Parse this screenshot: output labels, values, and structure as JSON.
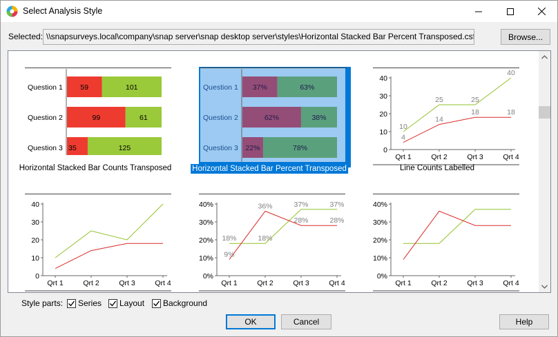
{
  "window": {
    "title": "Select Analysis Style",
    "minimize_icon": "minimize-icon",
    "maximize_icon": "maximize-icon",
    "close_icon": "close-icon"
  },
  "selected": {
    "label": "Selected:",
    "path": "\\\\snapsurveys.local\\company\\snap server\\snap desktop server\\styles\\Horizontal Stacked Bar Percent Transposed.csf"
  },
  "buttons": {
    "browse": "Browse...",
    "ok": "OK",
    "cancel": "Cancel",
    "help": "Help"
  },
  "style_parts": {
    "label": "Style parts:",
    "options": [
      {
        "label": "Series",
        "checked": true
      },
      {
        "label": "Layout",
        "checked": true
      },
      {
        "label": "Background",
        "checked": true
      }
    ]
  },
  "colors": {
    "accent": "#0078d7",
    "bar_red": "#ee3b2f",
    "bar_green": "#9ac93a",
    "line_red": "#d92b2b",
    "line_green": "#92c12a"
  },
  "thumbnails": [
    {
      "caption": "Horizontal Stacked Bar Counts Transposed",
      "selected": false,
      "chart_data": {
        "type": "bar",
        "orientation": "horizontal-stacked",
        "categories": [
          "Question 1",
          "Question 2",
          "Question 3"
        ],
        "series": [
          {
            "values": [
              59,
              99,
              35
            ]
          },
          {
            "values": [
              101,
              61,
              125
            ]
          }
        ],
        "labels": [
          [
            "59",
            "101"
          ],
          [
            "99",
            "61"
          ],
          [
            "35",
            "125"
          ]
        ]
      }
    },
    {
      "caption": "Horizontal Stacked Bar Percent Transposed",
      "selected": true,
      "chart_data": {
        "type": "bar",
        "orientation": "horizontal-stacked-percent",
        "categories": [
          "Question 1",
          "Question 2",
          "Question 3"
        ],
        "series": [
          {
            "values": [
              37,
              62,
              22
            ]
          },
          {
            "values": [
              63,
              38,
              78
            ]
          }
        ],
        "labels": [
          [
            "37%",
            "63%"
          ],
          [
            "62%",
            "38%"
          ],
          [
            "22%",
            "78%"
          ]
        ]
      }
    },
    {
      "caption": "Line Counts Labelled",
      "selected": false,
      "chart_data": {
        "type": "line",
        "categories": [
          "Qrt 1",
          "Qrt 2",
          "Qrt 3",
          "Qrt 4"
        ],
        "yticks": [
          "0",
          "10",
          "20",
          "30",
          "40"
        ],
        "ylim": [
          0,
          40
        ],
        "series": [
          {
            "values": [
              10,
              25,
              25,
              40
            ],
            "labels": [
              "10",
              "25",
              "25",
              "40"
            ]
          },
          {
            "values": [
              4,
              14,
              18,
              18
            ],
            "labels": [
              "4",
              "14",
              "18",
              "18"
            ]
          }
        ]
      }
    },
    {
      "caption": "",
      "selected": false,
      "chart_data": {
        "type": "line",
        "categories": [
          "Qrt 1",
          "Qrt 2",
          "Qrt 3",
          "Qrt 4"
        ],
        "yticks": [
          "0",
          "10",
          "20",
          "30",
          "40"
        ],
        "ylim": [
          0,
          40
        ],
        "series": [
          {
            "values": [
              10,
              25,
              20,
              40
            ]
          },
          {
            "values": [
              4,
              14,
              18,
              18
            ]
          }
        ]
      }
    },
    {
      "caption": "",
      "selected": false,
      "chart_data": {
        "type": "line",
        "categories": [
          "Qrt 1",
          "Qrt 2",
          "Qrt 3",
          "Qrt 4"
        ],
        "yticks": [
          "0%",
          "10%",
          "20%",
          "30%",
          "40%"
        ],
        "ylim": [
          0,
          40
        ],
        "series": [
          {
            "values": [
              18,
              18,
              37,
              37
            ],
            "labels": [
              "18%",
              "18%",
              "37%",
              "37%"
            ]
          },
          {
            "values": [
              9,
              36,
              28,
              28
            ],
            "labels": [
              "9%",
              "36%",
              "28%",
              "28%"
            ]
          }
        ]
      }
    },
    {
      "caption": "",
      "selected": false,
      "chart_data": {
        "type": "line",
        "categories": [
          "Qrt 1",
          "Qrt 2",
          "Qrt 3",
          "Qrt 4"
        ],
        "yticks": [
          "0%",
          "10%",
          "20%",
          "30%",
          "40%"
        ],
        "ylim": [
          0,
          40
        ],
        "series": [
          {
            "values": [
              18,
              18,
              37,
              37
            ]
          },
          {
            "values": [
              9,
              36,
              28,
              28
            ]
          }
        ]
      }
    }
  ]
}
